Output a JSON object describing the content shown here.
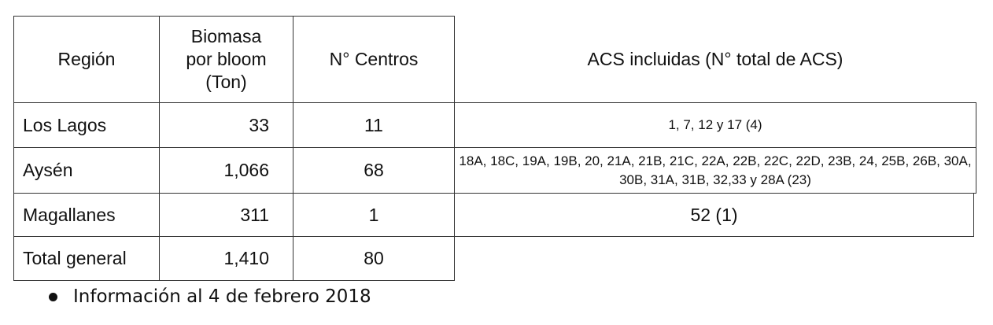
{
  "table": {
    "header": [
      "Región",
      "Biomasa por bloom (Ton)",
      "N° Centros",
      "ACS incluidas (N° total de ACS)"
    ],
    "rows": [
      [
        "Los Lagos",
        "33",
        "11",
        "1, 7, 12 y 17 (4)"
      ],
      [
        "Aysén",
        "1,066",
        "68",
        "18A, 18C, 19A, 19B, 20, 21A, 21B, 21C, 22A, 22B, 22C, 22D, 23B, 24, 25B, 26B, 30A, 30B, 31A, 31B, 32,33 y 28A (23)"
      ],
      [
        "Magallanes",
        "311",
        "1",
        "52 (1)"
      ],
      [
        "Total general",
        "1,410",
        "80"
      ]
    ]
  },
  "note": "Información al 4 de febrero 2018"
}
